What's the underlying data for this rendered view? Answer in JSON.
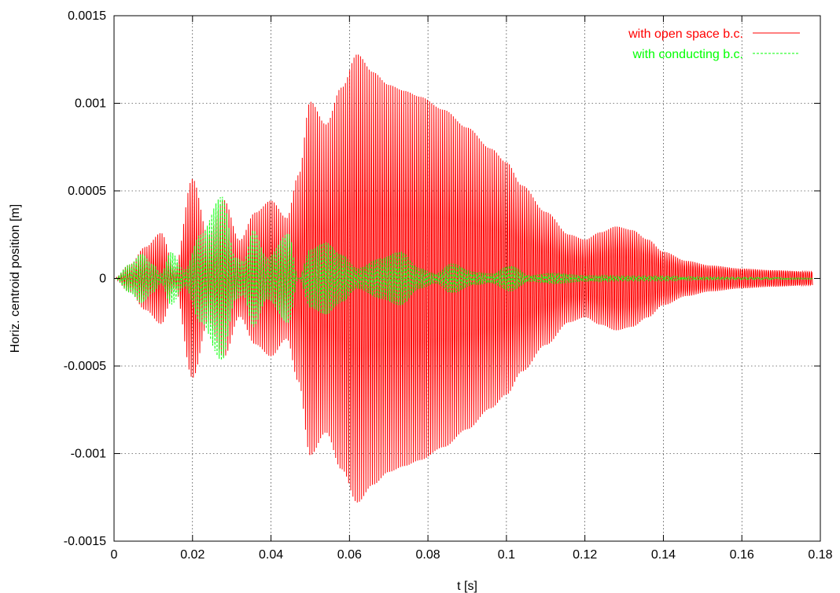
{
  "chart_data": {
    "type": "line",
    "xlabel": "t [s]",
    "ylabel": "Horiz. centroid position [m]",
    "xlim": [
      0,
      0.18
    ],
    "ylim": [
      -0.0015,
      0.0015
    ],
    "x_ticks": [
      0,
      0.02,
      0.04,
      0.06,
      0.08,
      0.1,
      0.12,
      0.14,
      0.16,
      0.18
    ],
    "x_tick_labels": [
      "0",
      "0.02",
      "0.04",
      "0.06",
      "0.08",
      "0.1",
      "0.12",
      "0.14",
      "0.16",
      "0.18"
    ],
    "y_ticks": [
      -0.0015,
      -0.001,
      -0.0005,
      0,
      0.0005,
      0.001,
      0.0015
    ],
    "y_tick_labels": [
      "-0.0015",
      "-0.001",
      "-0.0005",
      "0",
      "0.0005",
      "0.001",
      "0.0015"
    ],
    "grid": true,
    "legend_position": "top-right",
    "t_end": 0.178,
    "series": [
      {
        "name": "with open space b.c.",
        "color": "#ff0000",
        "dash": "solid",
        "oscillation_period_s": 0.00055,
        "envelope": {
          "t": [
            0,
            0.004,
            0.008,
            0.012,
            0.0155,
            0.02,
            0.024,
            0.028,
            0.032,
            0.036,
            0.04,
            0.044,
            0.047,
            0.05,
            0.054,
            0.058,
            0.062,
            0.066,
            0.07,
            0.074,
            0.078,
            0.084,
            0.09,
            0.096,
            0.1,
            0.104,
            0.11,
            0.116,
            0.12,
            0.124,
            0.128,
            0.132,
            0.136,
            0.14,
            0.146,
            0.152,
            0.16,
            0.168,
            0.178
          ],
          "amplitude": [
            0,
            8e-05,
            0.00018,
            0.00026,
            6e-05,
            0.00057,
            0.00025,
            0.00045,
            0.00022,
            0.00038,
            0.00045,
            0.00035,
            0.0006,
            0.00103,
            0.0009,
            0.00112,
            0.00132,
            0.00122,
            0.00115,
            0.00112,
            0.00109,
            0.00102,
            0.00092,
            0.0008,
            0.00072,
            0.00058,
            0.00042,
            0.00028,
            0.00025,
            0.0003,
            0.00034,
            0.00032,
            0.00026,
            0.00018,
            0.00012,
            9e-05,
            7e-05,
            6e-05,
            5e-05
          ]
        }
      },
      {
        "name": "with conducting b.c.",
        "color": "#00ff00",
        "dash": "dashed",
        "oscillation_period_s": 0.00055,
        "envelope": {
          "t": [
            0,
            0.004,
            0.007,
            0.01,
            0.012,
            0.0145,
            0.018,
            0.022,
            0.0275,
            0.031,
            0.033,
            0.0355,
            0.039,
            0.0445,
            0.047,
            0.05,
            0.054,
            0.058,
            0.062,
            0.068,
            0.073,
            0.078,
            0.082,
            0.086,
            0.092,
            0.096,
            0.101,
            0.106,
            0.112,
            0.12,
            0.13,
            0.14,
            0.15,
            0.16,
            0.178
          ],
          "amplitude": [
            0,
            8e-05,
            0.00014,
            8e-05,
            3e-05,
            0.00015,
            5e-05,
            0.00025,
            0.00047,
            0.00012,
            0.0001,
            0.00028,
            0.00012,
            0.00026,
            0.0,
            0.00017,
            0.00021,
            0.00014,
            6e-05,
            0.00012,
            0.00016,
            6e-05,
            3e-05,
            9e-05,
            4e-05,
            3e-05,
            8e-05,
            2e-05,
            3.5e-05,
            2e-05,
            1.5e-05,
            1.5e-05,
            1e-05,
            8e-06,
            5e-06
          ]
        }
      }
    ]
  }
}
